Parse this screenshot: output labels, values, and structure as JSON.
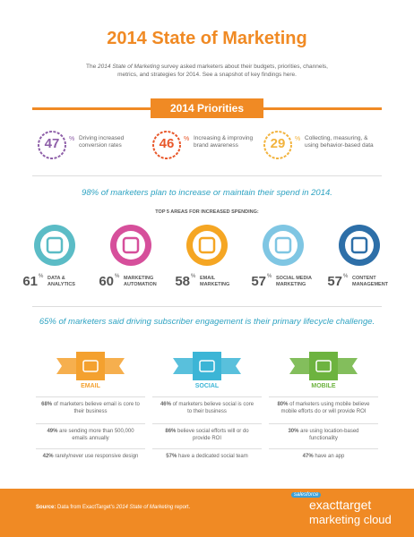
{
  "header": {
    "title": "2014 State of Marketing",
    "intro_pre": "The",
    "intro_em": "2014 State of Marketing",
    "intro_post": "survey asked marketers about their budgets, priorities, channels, metrics, and strategies for 2014. See a snapshot of key findings here."
  },
  "priorities": {
    "title": "2014 Priorities",
    "items": [
      {
        "value": 47,
        "unit": "%",
        "label": "Driving increased conversion rates",
        "color": "#8e5fa8"
      },
      {
        "value": 46,
        "unit": "%",
        "label": "Increasing & improving brand awareness",
        "color": "#e8572a"
      },
      {
        "value": 29,
        "unit": "%",
        "label": "Collecting, measuring, & using behavior-based data",
        "color": "#f2b33d"
      }
    ]
  },
  "spend": {
    "headline": "98% of marketers plan to increase or maintain their spend in 2014.",
    "subtitle": "TOP 5 AREAS FOR INCREASED SPENDING:",
    "areas": [
      {
        "value": 61,
        "unit": "%",
        "label": [
          "DATA &",
          "ANALYTICS"
        ],
        "color": "#5bbcc6"
      },
      {
        "value": 60,
        "unit": "%",
        "label": [
          "MARKETING",
          "AUTOMATION"
        ],
        "color": "#d64f9b"
      },
      {
        "value": 58,
        "unit": "%",
        "label": [
          "EMAIL",
          "MARKETING"
        ],
        "color": "#f5a623"
      },
      {
        "value": 57,
        "unit": "%",
        "label": [
          "SOCIAL MEDIA",
          "MARKETING"
        ],
        "color": "#7fc6e3"
      },
      {
        "value": 57,
        "unit": "%",
        "label": [
          "CONTENT",
          "MANAGEMENT"
        ],
        "color": "#2d6fa8"
      }
    ]
  },
  "engagement": {
    "headline": "65% of marketers said driving subscriber engagement is their primary lifecycle challenge."
  },
  "channels": [
    {
      "name": "EMAIL",
      "color": "#f4a12f",
      "facts": [
        {
          "bold": "68%",
          "text": "of marketers believe email is core to their business"
        },
        {
          "bold": "49%",
          "text": "are sending more than 500,000 emails annually"
        },
        {
          "bold": "42%",
          "text": "rarely/never use responsive design"
        }
      ]
    },
    {
      "name": "SOCIAL",
      "color": "#3cb5d6",
      "facts": [
        {
          "bold": "46%",
          "text": "of marketers believe social is core to their business"
        },
        {
          "bold": "86%",
          "text": "believe social efforts will or do provide ROI"
        },
        {
          "bold": "57%",
          "text": "have a dedicated social team"
        }
      ]
    },
    {
      "name": "MOBILE",
      "color": "#6db33f",
      "facts": [
        {
          "bold": "80%",
          "text": "of marketers using mobile believe mobile efforts do or will provide ROI"
        },
        {
          "bold": "30%",
          "text": "are using location-based functionality"
        },
        {
          "bold": "47%",
          "text": "have an app"
        }
      ]
    }
  ],
  "footer": {
    "source_label": "Source:",
    "source_pre": "Data from ExactTarget's",
    "source_em": "2014 State of Marketing",
    "source_post": "report.",
    "logo_top": "salesforce",
    "logo_main": "exacttarget",
    "logo_sub": "marketing cloud"
  }
}
